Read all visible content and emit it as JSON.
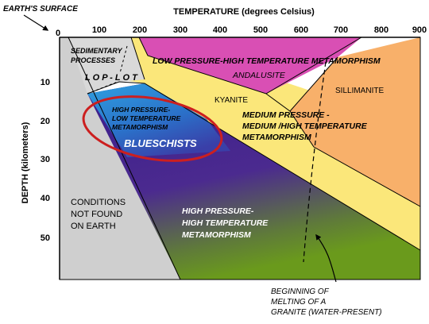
{
  "diagram": {
    "surface_label": "EARTH'S SURFACE",
    "x_axis": {
      "title": "TEMPERATURE (degrees Celsius)",
      "ticks": [
        0,
        100,
        200,
        300,
        400,
        500,
        600,
        700,
        800,
        900
      ]
    },
    "y_axis": {
      "title": "DEPTH (kilometers)",
      "ticks": [
        10,
        20,
        30,
        40,
        50
      ]
    },
    "regions": {
      "sedimentary": [
        "SEDIMENTARY",
        "PROCESSES"
      ],
      "lop_lot": "L O P - L O T",
      "low_p_high_t": "LOW PRESSURE-HIGH TEMPERATURE METAMORPHISM",
      "andalusite": "ANDALUSITE",
      "kyanite": "KYANITE",
      "sillimanite": "SILLIMANITE",
      "high_p_low_t": [
        "HIGH PRESSURE-",
        "LOW TEMPERATURE",
        "METAMORPHISM"
      ],
      "blueschists": "BLUESCHISTS",
      "medium_pressure": [
        "MEDIUM PRESSURE -",
        "MEDIUM /HIGH TEMPERATURE",
        "METAMORPHISM"
      ],
      "not_found": [
        "CONDITIONS",
        "NOT FOUND",
        "ON EARTH"
      ],
      "high_p_high_t": [
        "HIGH PRESSURE-",
        "HIGH TEMPERATURE",
        "METAMORPHISM"
      ]
    },
    "melting_note": [
      "BEGINNING OF",
      "MELTING OF A",
      "GRANITE (WATER-PRESENT)"
    ],
    "colors": {
      "sedimentary": "#d9d9d9",
      "not_found": "#cfcfcf",
      "low_pressure": "#d94fb4",
      "medium_pressure": "#fbe77a",
      "sillimanite": "#f8b06a",
      "blueschist": "#2e8fd8",
      "high_pressure_top": "#3a1d8c",
      "high_pressure_bottom": "#6a9a1c",
      "highlight_ellipse": "#cc1f1f"
    }
  }
}
